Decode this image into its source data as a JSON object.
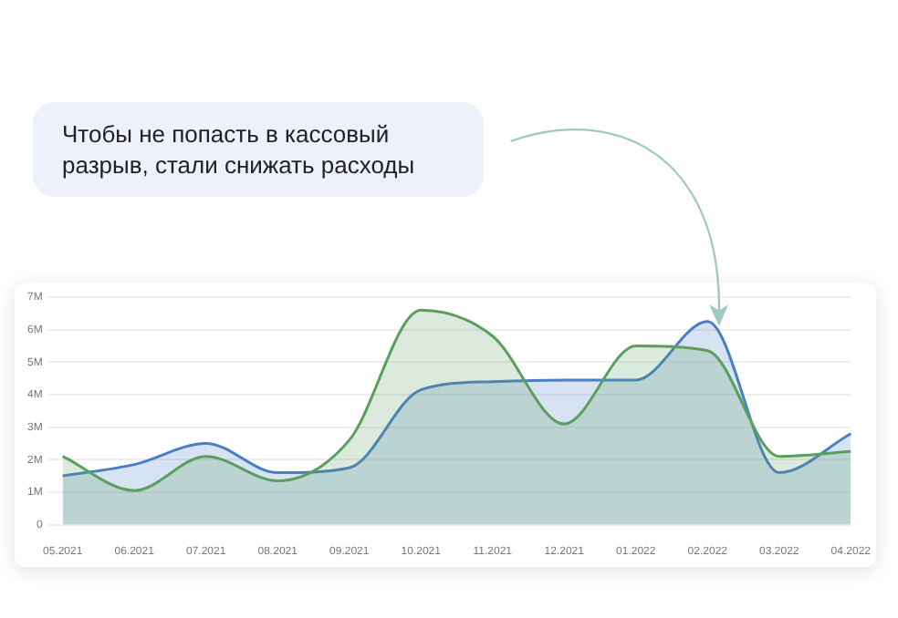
{
  "chart_data": {
    "type": "area",
    "categories": [
      "05.2021",
      "06.2021",
      "07.2021",
      "08.2021",
      "09.2021",
      "10.2021",
      "11.2021",
      "12.2021",
      "01.2022",
      "02.2022",
      "03.2022",
      "04.2022"
    ],
    "series": [
      {
        "color": "#5b9f5e",
        "values": [
          2.1,
          1.05,
          2.1,
          1.35,
          2.6,
          6.6,
          5.8,
          3.1,
          5.5,
          5.35,
          2.1,
          2.25
        ]
      },
      {
        "color": "#4a7ec4",
        "values": [
          1.5,
          1.85,
          2.5,
          1.6,
          1.75,
          4.15,
          4.4,
          4.45,
          4.45,
          6.25,
          1.6,
          2.8
        ]
      }
    ],
    "ylim": [
      0,
      7
    ],
    "yticks": [
      0,
      {
        "value": 1,
        "label": "1M"
      },
      {
        "value": 2,
        "label": "2M"
      },
      {
        "value": 3,
        "label": "3M"
      },
      {
        "value": 4,
        "label": "4M"
      },
      {
        "value": 5,
        "label": "5M"
      },
      {
        "value": 6,
        "label": "6M"
      },
      {
        "value": 7,
        "label": "7M"
      }
    ],
    "grid": "y",
    "legend": false,
    "annotations": [
      "Чтобы не попасть в кассовый разрыв, стали снижать расходы"
    ]
  }
}
